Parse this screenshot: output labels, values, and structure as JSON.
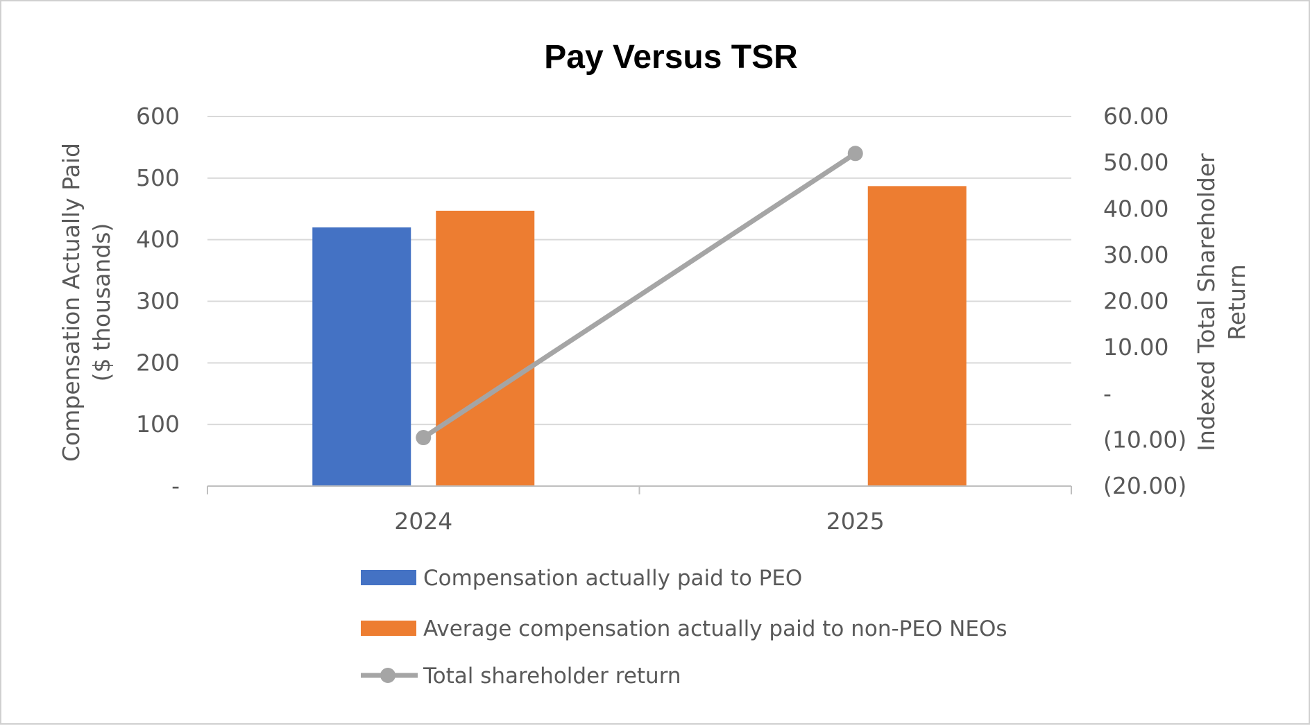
{
  "chart_data": {
    "type": "bar",
    "title": "Pay Versus TSR",
    "categories": [
      "2024",
      "2025"
    ],
    "series": [
      {
        "name": "Compensation actually paid to PEO",
        "type": "bar",
        "axis": "left",
        "color": "#4472C4",
        "values": [
          420,
          null
        ]
      },
      {
        "name": "Average compensation actually paid to non-PEO NEOs",
        "type": "bar",
        "axis": "left",
        "color": "#ED7D31",
        "values": [
          447,
          487
        ]
      },
      {
        "name": "Total shareholder return",
        "type": "line",
        "axis": "right",
        "color": "#A5A5A5",
        "values": [
          -9.5,
          52.0
        ]
      }
    ],
    "y_left": {
      "label_lines": [
        "Compensation Actually Paid",
        "($ thousands)"
      ],
      "ylim": [
        0,
        600
      ],
      "ticks": [
        0,
        100,
        200,
        300,
        400,
        500,
        600
      ],
      "tick_labels": [
        "-",
        "100",
        "200",
        "300",
        "400",
        "500",
        "600"
      ]
    },
    "y_right": {
      "label_lines": [
        "Indexed Total Shareholder",
        "Return"
      ],
      "ylim": [
        -20,
        60
      ],
      "ticks": [
        -20,
        -10,
        0,
        10,
        20,
        30,
        40,
        50,
        60
      ],
      "tick_labels": [
        "(20.00)",
        "(10.00)",
        "-",
        "10.00",
        "20.00",
        "30.00",
        "40.00",
        "50.00",
        "60.00"
      ]
    },
    "grid": true,
    "legend_position": "bottom",
    "colors": {
      "gridline": "#D9D9D9",
      "axis_line": "#BFBFBF",
      "text": "#595959"
    }
  }
}
